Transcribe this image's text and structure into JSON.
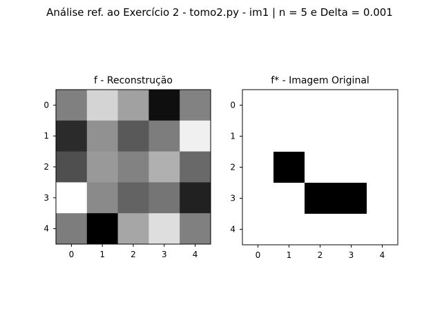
{
  "suptitle": "Análise ref. ao Exercício 2 - tomo2.py - im1 | n = 5 e Delta = 0.001",
  "chart_data": [
    {
      "type": "heatmap",
      "title": "f - Reconstrução",
      "colormap": "gray",
      "x_ticks": [
        "0",
        "1",
        "2",
        "3",
        "4"
      ],
      "y_ticks": [
        "0",
        "1",
        "2",
        "3",
        "4"
      ],
      "values": [
        [
          0.5,
          0.83,
          0.63,
          0.06,
          0.51
        ],
        [
          0.17,
          0.57,
          0.35,
          0.49,
          0.94
        ],
        [
          0.31,
          0.6,
          0.51,
          0.69,
          0.41
        ],
        [
          1.0,
          0.54,
          0.39,
          0.46,
          0.13
        ],
        [
          0.49,
          0.0,
          0.65,
          0.87,
          0.5
        ]
      ]
    },
    {
      "type": "heatmap",
      "title": "f* - Imagem Original",
      "colormap": "gray",
      "x_ticks": [
        "0",
        "1",
        "2",
        "3",
        "4"
      ],
      "y_ticks": [
        "0",
        "1",
        "2",
        "3",
        "4"
      ],
      "values": [
        [
          1,
          1,
          1,
          1,
          1
        ],
        [
          1,
          1,
          1,
          1,
          1
        ],
        [
          1,
          0,
          1,
          1,
          1
        ],
        [
          1,
          1,
          0,
          0,
          1
        ],
        [
          1,
          1,
          1,
          1,
          1
        ]
      ]
    }
  ]
}
